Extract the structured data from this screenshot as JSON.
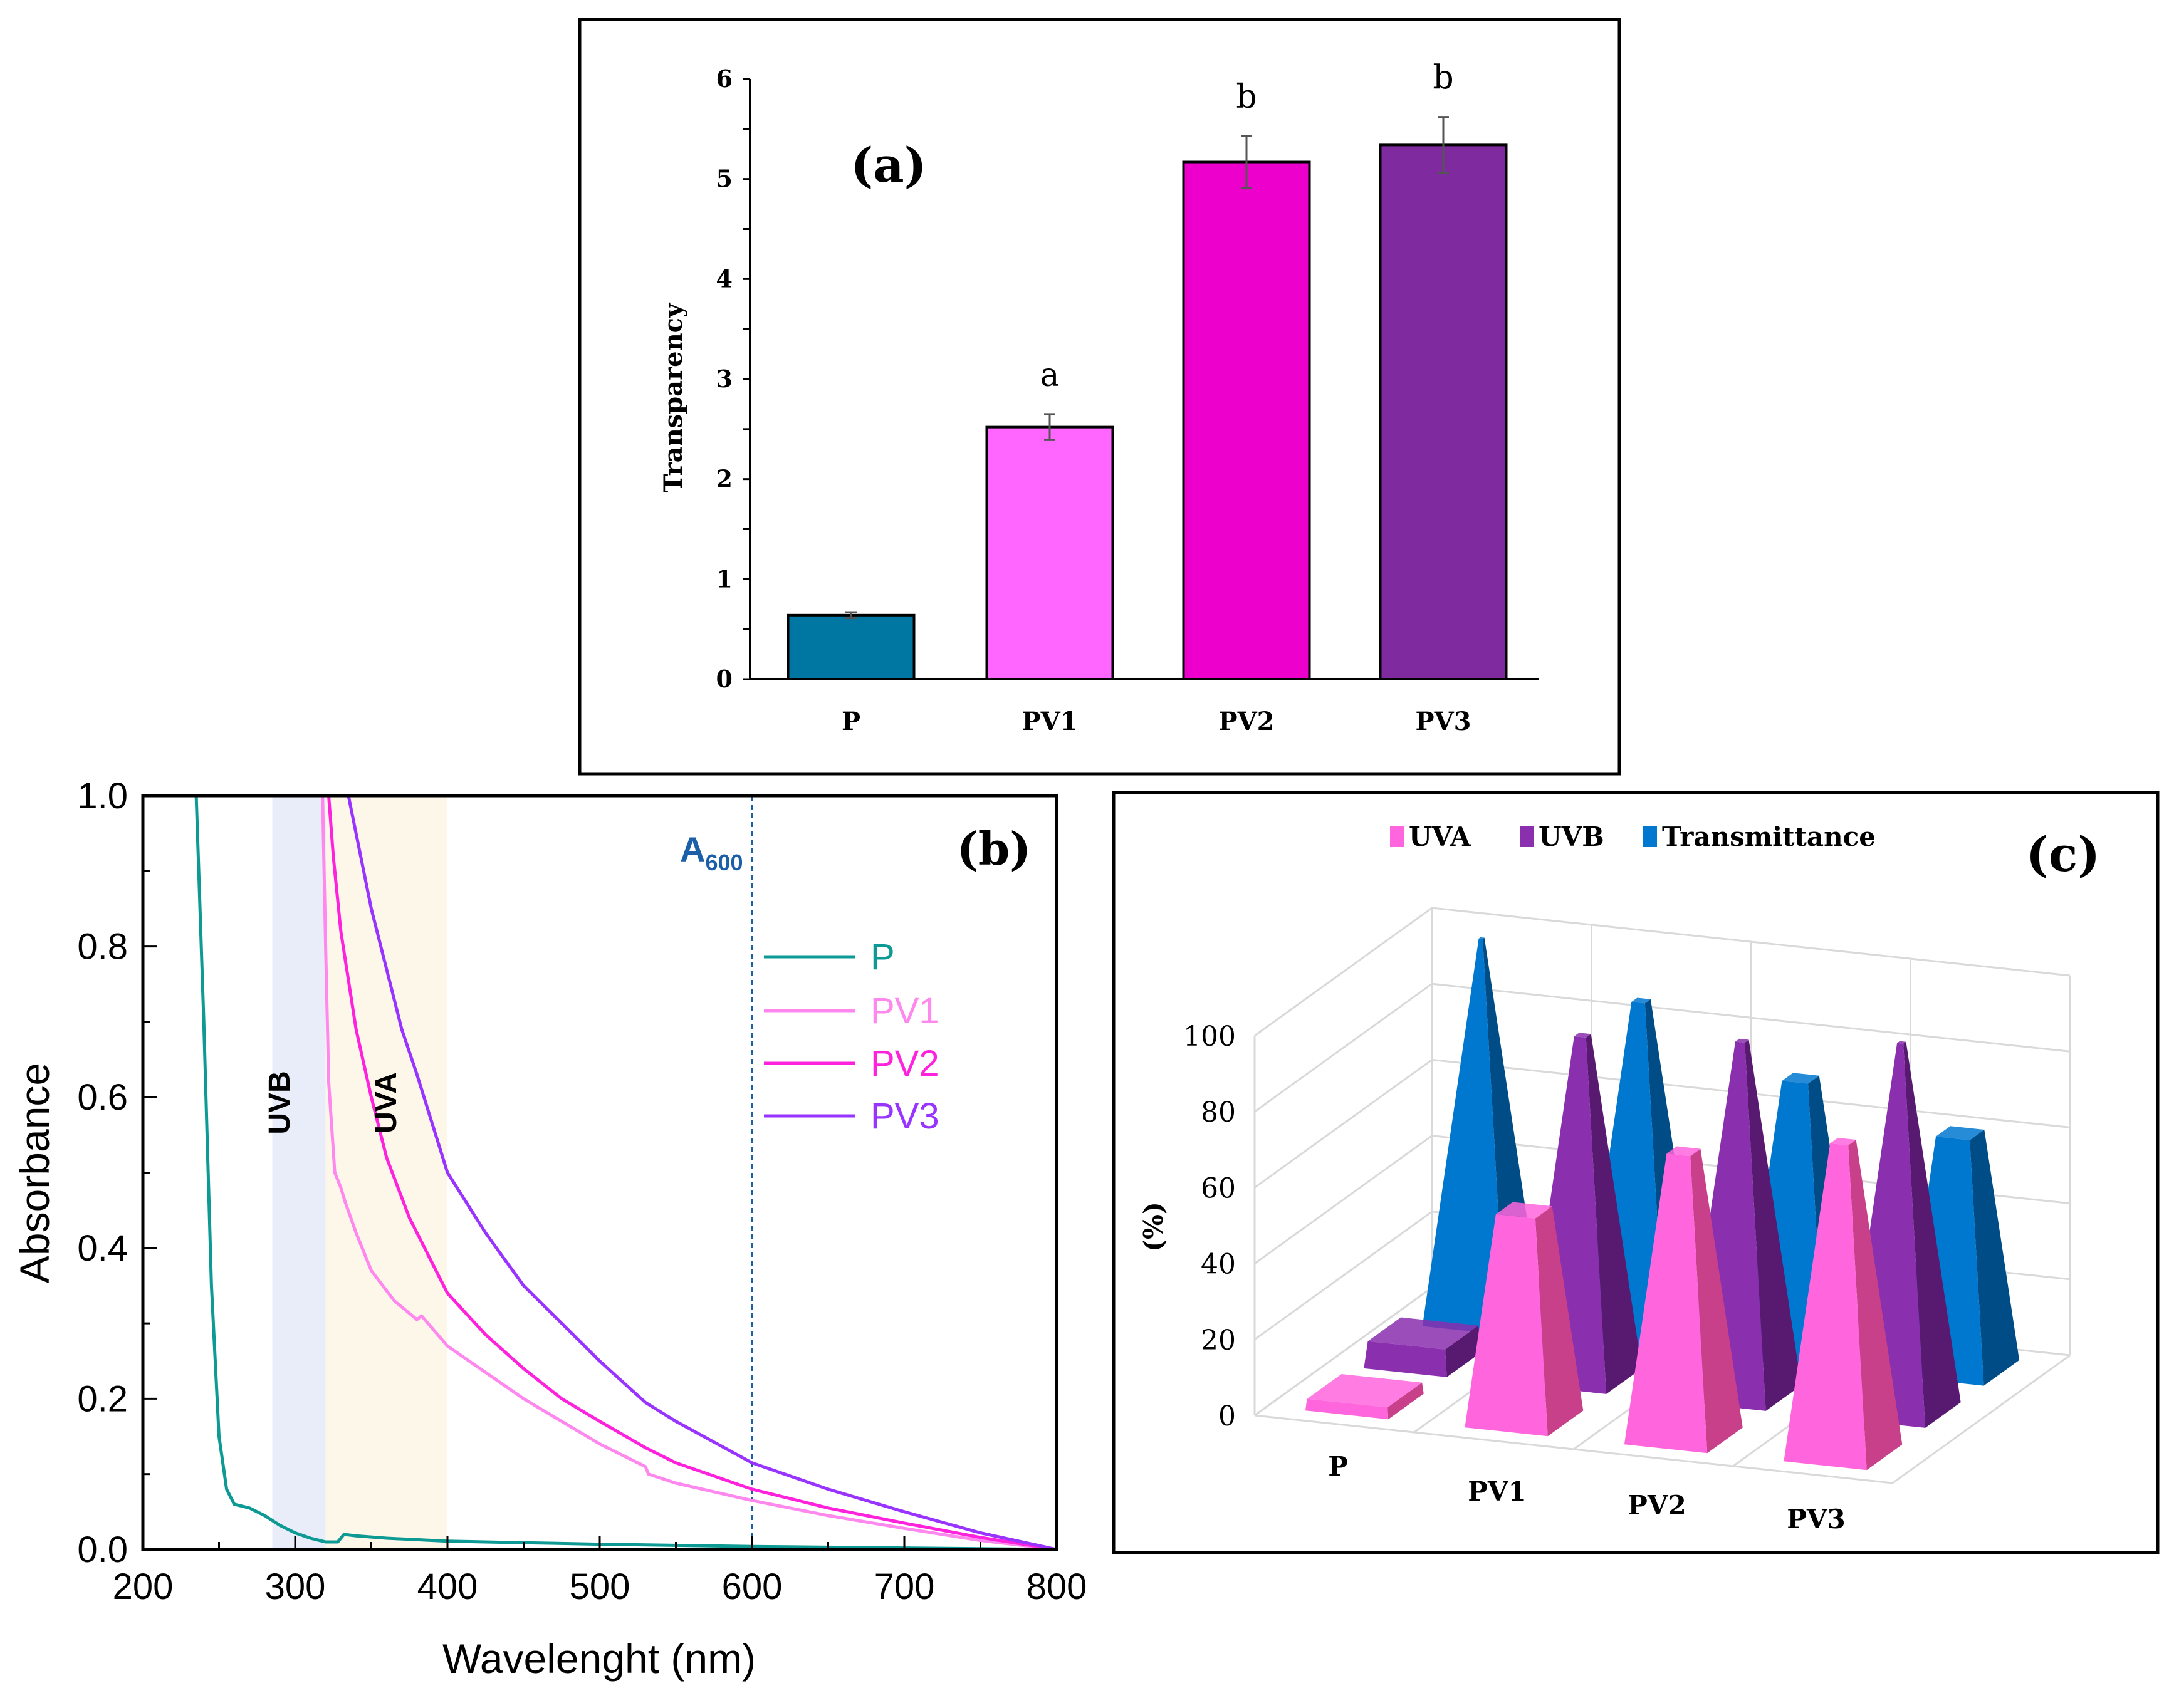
{
  "chart_data": [
    {
      "panel": "(a)",
      "type": "bar",
      "title": "(a)",
      "xlabel": "",
      "ylabel": "Transparency",
      "ylim": [
        0,
        6
      ],
      "yticks": [
        "0",
        "1",
        "2",
        "3",
        "4",
        "5",
        "6"
      ],
      "categories": [
        "P",
        "PV1",
        "PV2",
        "PV3"
      ],
      "values": [
        0.64,
        2.52,
        5.17,
        5.34
      ],
      "errors": [
        0.03,
        0.13,
        0.26,
        0.28
      ],
      "significance_letters": [
        "",
        "a",
        "b",
        "b"
      ],
      "colors": [
        "#0077a3",
        "#ff66ff",
        "#ee00cc",
        "#7f2a9f"
      ]
    },
    {
      "panel": "(b)",
      "type": "line",
      "title": "(b)",
      "xlabel": "Wavelenght (nm)",
      "ylabel": "Absorbance",
      "xlim": [
        200,
        800
      ],
      "ylim": [
        0,
        1.0
      ],
      "xticks": [
        "200",
        "300",
        "400",
        "500",
        "600",
        "700",
        "800"
      ],
      "yticks": [
        "0.0",
        "0.2",
        "0.4",
        "0.6",
        "0.8",
        "1.0"
      ],
      "bands": [
        {
          "label": "UVB",
          "from": 285,
          "to": 320,
          "color": "#e8edf9"
        },
        {
          "label": "UVA",
          "from": 320,
          "to": 400,
          "color": "#fdf7ea"
        }
      ],
      "marker_line": {
        "x": 600,
        "label": "A",
        "subscript": "600",
        "color": "#1a5fa8"
      },
      "legend_position": "right",
      "series": [
        {
          "name": "P",
          "color": "#0e9a94",
          "x": [
            235,
            240,
            245,
            250,
            255,
            260,
            270,
            280,
            290,
            300,
            310,
            320,
            328,
            332,
            340,
            360,
            400,
            450,
            500,
            600,
            700,
            800
          ],
          "y": [
            1.0,
            0.7,
            0.35,
            0.15,
            0.08,
            0.06,
            0.055,
            0.045,
            0.032,
            0.022,
            0.015,
            0.01,
            0.01,
            0.02,
            0.018,
            0.015,
            0.011,
            0.009,
            0.007,
            0.004,
            0.002,
            0.0
          ]
        },
        {
          "name": "PV1",
          "color": "#ff88ee",
          "x": [
            318,
            320,
            322,
            326,
            330,
            333,
            340,
            350,
            365,
            380,
            383,
            400,
            450,
            500,
            530,
            532,
            550,
            600,
            650,
            700,
            750,
            800
          ],
          "y": [
            1.0,
            0.8,
            0.62,
            0.5,
            0.48,
            0.46,
            0.42,
            0.37,
            0.33,
            0.305,
            0.31,
            0.27,
            0.2,
            0.14,
            0.11,
            0.1,
            0.088,
            0.065,
            0.045,
            0.028,
            0.012,
            0.0
          ]
        },
        {
          "name": "PV2",
          "color": "#ff22dd",
          "x": [
            322,
            325,
            330,
            340,
            350,
            360,
            375,
            390,
            400,
            425,
            450,
            475,
            500,
            530,
            550,
            600,
            650,
            700,
            750,
            800
          ],
          "y": [
            1.0,
            0.92,
            0.82,
            0.69,
            0.6,
            0.52,
            0.44,
            0.38,
            0.34,
            0.285,
            0.24,
            0.2,
            0.17,
            0.135,
            0.115,
            0.08,
            0.055,
            0.035,
            0.016,
            0.0
          ]
        },
        {
          "name": "PV3",
          "color": "#9933ff",
          "x": [
            335,
            340,
            350,
            360,
            370,
            380,
            400,
            425,
            450,
            475,
            500,
            530,
            550,
            600,
            650,
            700,
            750,
            800
          ],
          "y": [
            1.0,
            0.95,
            0.85,
            0.77,
            0.69,
            0.63,
            0.5,
            0.42,
            0.35,
            0.3,
            0.25,
            0.195,
            0.17,
            0.115,
            0.08,
            0.05,
            0.022,
            0.0
          ]
        }
      ]
    },
    {
      "panel": "(c)",
      "type": "bar",
      "subtype": "3d-pyramid",
      "title": "(c)",
      "ylabel": "(%)",
      "ylim": [
        0,
        100
      ],
      "yticks": [
        "0",
        "20",
        "40",
        "60",
        "80",
        "100"
      ],
      "categories": [
        "P",
        "PV1",
        "PV2",
        "PV3"
      ],
      "legend_position": "top",
      "series": [
        {
          "name": "UVA",
          "color": "#ff66dd",
          "side": "#c8408a",
          "values": [
            3,
            55,
            75,
            82
          ]
        },
        {
          "name": "UVB",
          "color": "#8a2fae",
          "side": "#571a70",
          "values": [
            7,
            90,
            93,
            97
          ]
        },
        {
          "name": "Transmittance",
          "color": "#0078d0",
          "side": "#004c86",
          "values": [
            100,
            88,
            72,
            62
          ]
        }
      ]
    }
  ]
}
